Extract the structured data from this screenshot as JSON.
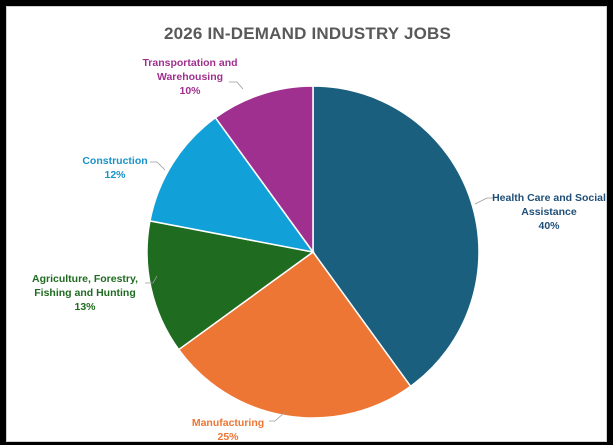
{
  "chart_data": {
    "type": "pie",
    "title": "2026 IN-DEMAND INDUSTRY JOBS",
    "slices": [
      {
        "label": "Health Care and Social Assistance",
        "value": 40,
        "pct_label": "40%",
        "color": "#1b5f7f"
      },
      {
        "label": "Manufacturing",
        "value": 25,
        "pct_label": "25%",
        "color": "#ed7634"
      },
      {
        "label": "Agriculture, Forestry, Fishing and Hunting",
        "value": 13,
        "pct_label": "13%",
        "color": "#1f6b20"
      },
      {
        "label": "Construction",
        "value": 12,
        "pct_label": "12%",
        "color": "#12a0d8"
      },
      {
        "label": "Transportation and Warehousing",
        "value": 10,
        "pct_label": "10%",
        "color": "#a0308f"
      }
    ],
    "label_colors": [
      "#1f4f78",
      "#ed7634",
      "#1f6b20",
      "#1a93c9",
      "#a0308f"
    ]
  }
}
